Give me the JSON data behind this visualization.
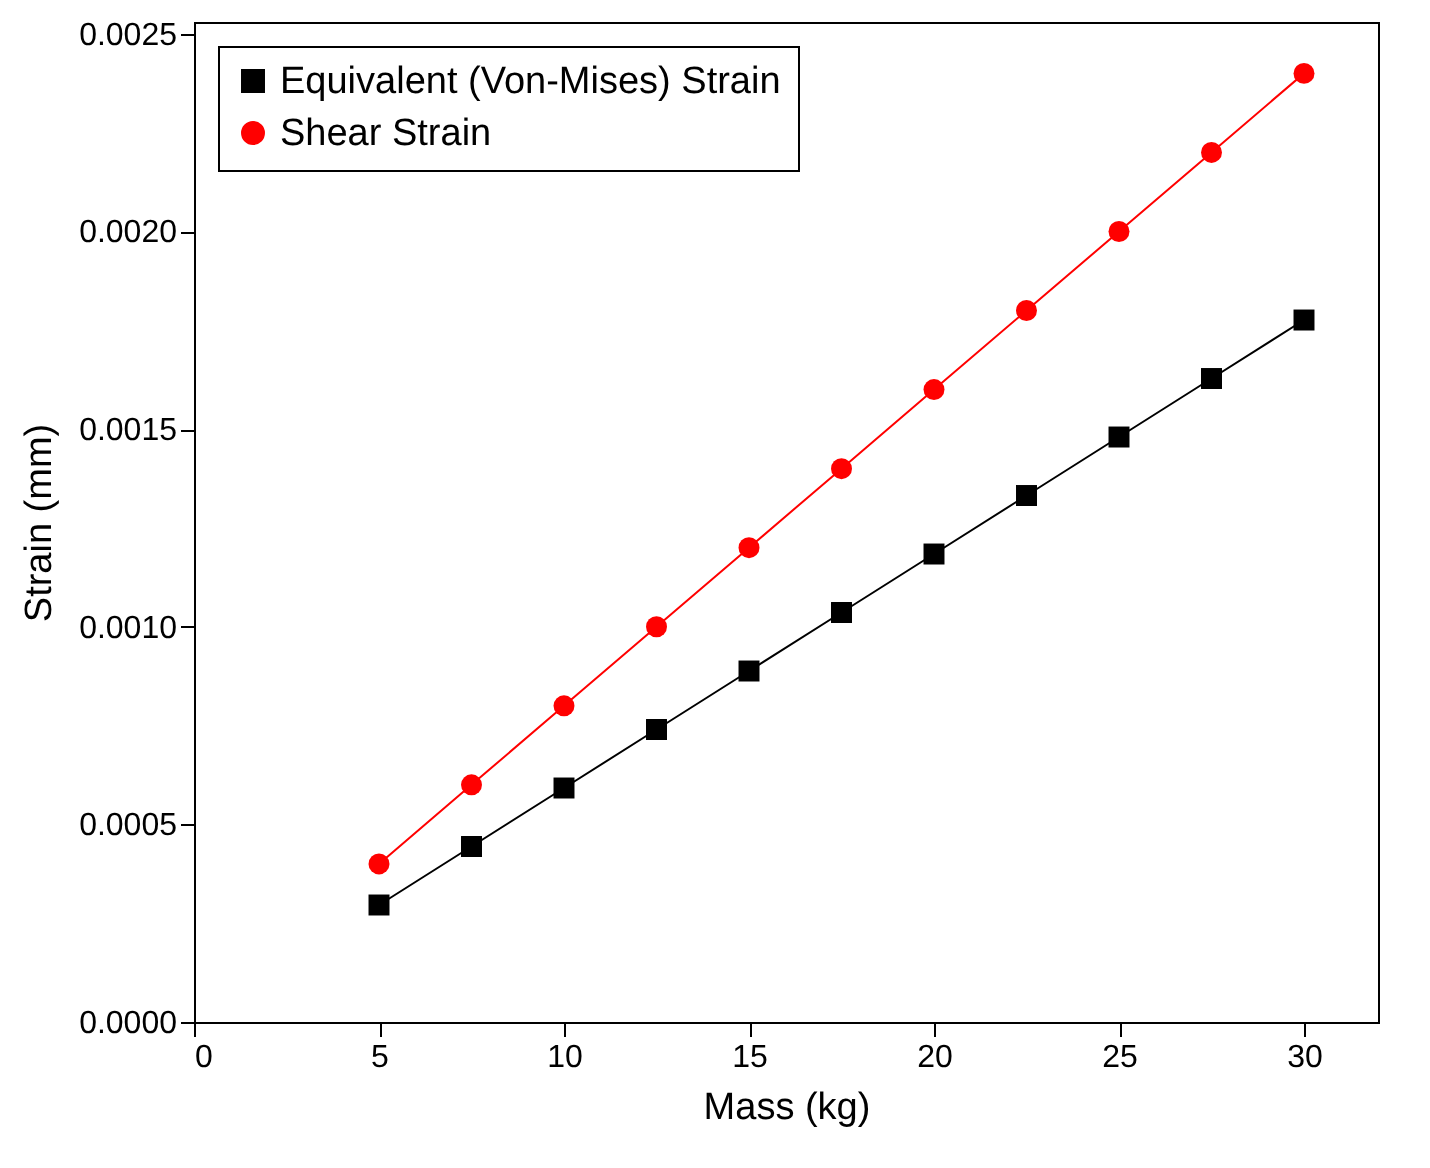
{
  "chart_data": {
    "type": "line",
    "xlabel": "Mass (kg)",
    "ylabel": "Strain (mm)",
    "x": [
      5,
      7.5,
      10,
      12.5,
      15,
      17.5,
      20,
      22.5,
      25,
      27.5,
      30
    ],
    "series": [
      {
        "name": "Equivalent (Von-Mises) Strain",
        "color": "#000000",
        "marker": "square",
        "values": [
          0.000296,
          0.000444,
          0.000592,
          0.00074,
          0.000888,
          0.001036,
          0.001184,
          0.001332,
          0.00148,
          0.001628,
          0.001776
        ]
      },
      {
        "name": "Shear Strain",
        "color": "#ff0000",
        "marker": "circle",
        "values": [
          0.0004,
          0.0006,
          0.0008,
          0.001,
          0.0012,
          0.0014,
          0.0016,
          0.0018,
          0.002,
          0.0022,
          0.0024
        ]
      }
    ],
    "xlim": [
      0,
      32
    ],
    "xticks": [
      0,
      5,
      10,
      15,
      20,
      25,
      30
    ],
    "ylim": [
      0,
      0.00253
    ],
    "yticks": [
      {
        "value": 0,
        "label": "0.0000"
      },
      {
        "value": 0.0005,
        "label": "0.0005"
      },
      {
        "value": 0.001,
        "label": "0.0010"
      },
      {
        "value": 0.0015,
        "label": "0.0015"
      },
      {
        "value": 0.002,
        "label": "0.0020"
      },
      {
        "value": 0.0025,
        "label": "0.0025"
      }
    ],
    "grid": false,
    "legend": "top left",
    "line_style": "solid"
  }
}
